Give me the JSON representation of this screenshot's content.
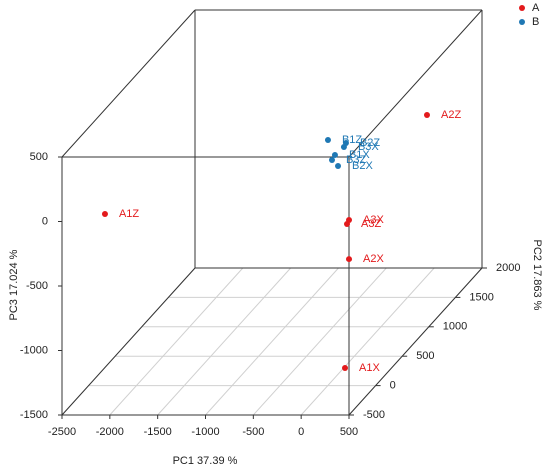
{
  "chart_data": {
    "type": "scatter3d",
    "xlabel": "PC1  37.39 %",
    "ylabel": "PC2  17.863 %",
    "zlabel": "PC3  17.024 %",
    "xlim": [
      -2500,
      500
    ],
    "ylim": [
      -500,
      2000
    ],
    "zlim": [
      -1500,
      500
    ],
    "xticks": [
      -2500,
      -2000,
      -1500,
      -1000,
      -500,
      0,
      500
    ],
    "yticks": [
      -500,
      0,
      500,
      1000,
      1500,
      2000
    ],
    "zticks": [
      -1500,
      -1000,
      -500,
      0,
      500
    ],
    "grid": true,
    "legend": "top-right",
    "series": [
      {
        "name": "A",
        "color": "#e31a1c",
        "labels": [
          "A1X",
          "A2X",
          "A3X",
          "A1Z",
          "A2Z",
          "A3Z"
        ],
        "x": [
          347,
          -56,
          -334,
          -2329,
          203,
          -355
        ],
        "y": [
          -300,
          500,
          1000,
          0,
          1500,
          1000
        ],
        "z": [
          -1227,
          -747,
          -672,
          -170,
          -86,
          -703
        ]
      },
      {
        "name": "B",
        "color": "#1f78b4",
        "labels": [
          "B1Z",
          "B3X",
          "B2Z",
          "B1X",
          "B3Z",
          "B2X"
        ],
        "x": [
          -832,
          -665,
          -644,
          -759,
          -790,
          -727
        ],
        "y": [
          1500,
          1500,
          1500,
          1500,
          1500,
          1500
        ],
        "z": [
          -280,
          -334,
          -303,
          -396,
          -435,
          -481
        ]
      }
    ]
  }
}
